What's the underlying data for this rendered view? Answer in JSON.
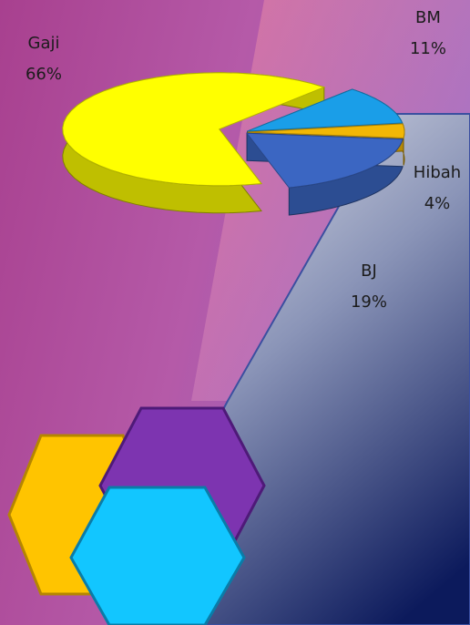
{
  "chart_data": {
    "type": "pie",
    "categories": [
      "BM",
      "Hibah",
      "BJ",
      "Gaji"
    ],
    "values": [
      11,
      4,
      19,
      66
    ],
    "value_labels": [
      "11%",
      "4%",
      "19%",
      "66%"
    ],
    "colors": [
      "#1a9ee8",
      "#f2b705",
      "#3b66c2",
      "#ffff00"
    ]
  }
}
